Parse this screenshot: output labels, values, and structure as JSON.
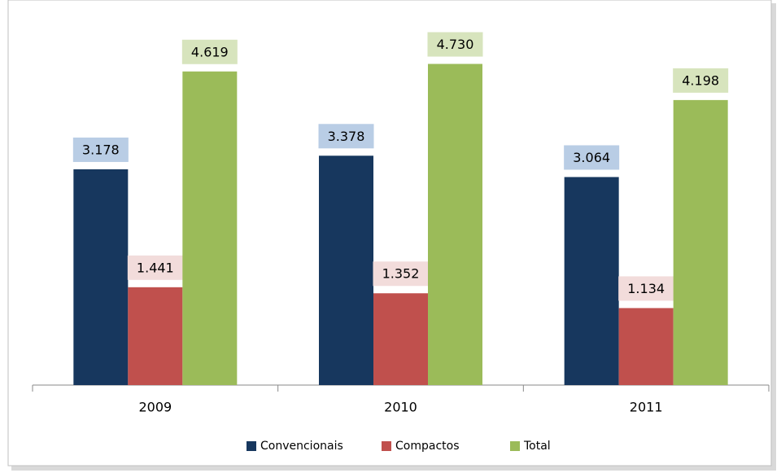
{
  "chart_data": {
    "type": "bar",
    "categories": [
      "2009",
      "2010",
      "2011"
    ],
    "series": [
      {
        "name": "Convencionais",
        "color": "#17375e",
        "label_color": "#b9cde5",
        "values": [
          3178,
          3378,
          3064
        ],
        "value_labels": [
          "3.178",
          "3.378",
          "3.064"
        ]
      },
      {
        "name": "Compactos",
        "color": "#c0504d",
        "label_color": "#f2dcdb",
        "values": [
          1441,
          1352,
          1134
        ],
        "value_labels": [
          "1.441",
          "1.352",
          "1.134"
        ]
      },
      {
        "name": "Total",
        "color": "#9bbb59",
        "label_color": "#d7e4bd",
        "values": [
          4619,
          4730,
          4198
        ],
        "value_labels": [
          "4.619",
          "4.730",
          "4.198"
        ]
      }
    ],
    "ylim": [
      0,
      5000
    ]
  }
}
